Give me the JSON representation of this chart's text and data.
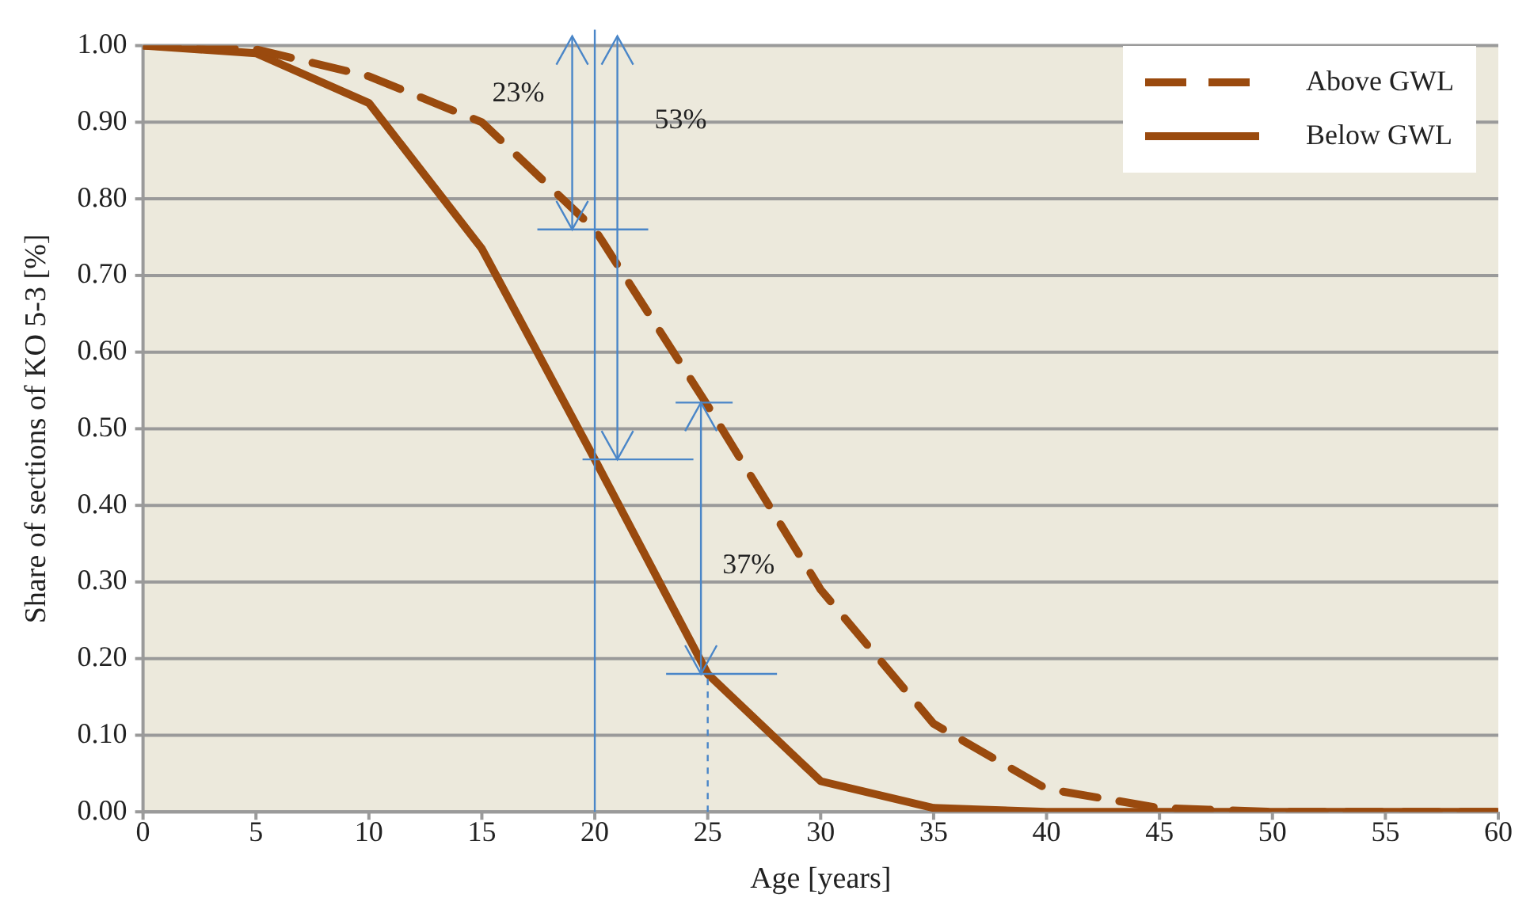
{
  "chart_data": {
    "type": "line",
    "xlabel": "Age [years]",
    "ylabel": "Share of sections of KO 5-3 [%]",
    "x": [
      0,
      5,
      10,
      15,
      20,
      25,
      30,
      35,
      40,
      45,
      50,
      55,
      60
    ],
    "series": [
      {
        "name": "Above GWL",
        "color": "#9a4a0e",
        "line_style": "dashed",
        "values": [
          1.0,
          0.995,
          0.96,
          0.9,
          0.76,
          0.53,
          0.29,
          0.115,
          0.03,
          0.005,
          0,
          0,
          0
        ]
      },
      {
        "name": "Below GWL",
        "color": "#9a4a0e",
        "line_style": "solid",
        "values": [
          1.0,
          0.99,
          0.925,
          0.735,
          0.46,
          0.18,
          0.04,
          0.005,
          0,
          0,
          0,
          0,
          0
        ]
      }
    ],
    "xlim": [
      0,
      60
    ],
    "xticks": [
      0,
      5,
      10,
      15,
      20,
      25,
      30,
      35,
      40,
      45,
      50,
      55,
      60
    ],
    "ylim": [
      0,
      1
    ],
    "yticks": [
      {
        "value": 0,
        "label": "0.00"
      },
      {
        "value": 0.1,
        "label": "0.10"
      },
      {
        "value": 0.2,
        "label": "0.20"
      },
      {
        "value": 0.3,
        "label": "0.30"
      },
      {
        "value": 0.4,
        "label": "0.40"
      },
      {
        "value": 0.5,
        "label": "0.50"
      },
      {
        "value": 0.6,
        "label": "0.60"
      },
      {
        "value": 0.7,
        "label": "0.70"
      },
      {
        "value": 0.8,
        "label": "0.80"
      },
      {
        "value": 0.9,
        "label": "0.90"
      },
      {
        "value": 1,
        "label": "1.00"
      }
    ],
    "ref_lines": [
      {
        "axis": "x",
        "value": 20,
        "color": "#4a86c8",
        "line_style": "solid"
      },
      {
        "axis": "x",
        "value": 25,
        "color": "#4a86c8",
        "line_style": "dashed"
      }
    ],
    "annotations": [
      "23%",
      "53%",
      "37%"
    ],
    "grid": "y",
    "legend": "top right",
    "marker": "none"
  }
}
